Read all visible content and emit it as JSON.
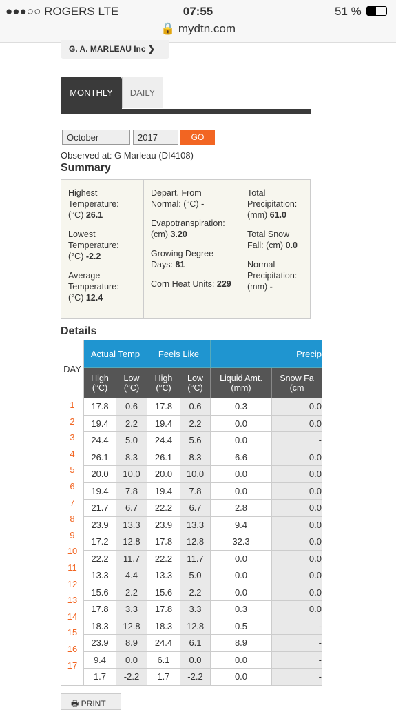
{
  "status_bar": {
    "carrier": "●●●○○ ROGERS   LTE",
    "time": "07:55",
    "battery": "51 %",
    "url": "mydtn.com"
  },
  "account": "G. A. MARLEAU Inc",
  "tabs": [
    "MONTHLY",
    "DAILY"
  ],
  "filters": {
    "month": "October",
    "year": "2017",
    "button": "GO"
  },
  "observed": "Observed at: G Marleau (DI4108)",
  "summary": {
    "title": "Summary",
    "columns": [
      [
        {
          "label": "Highest Temperature: (°C)",
          "value": "26.1"
        },
        {
          "label": "Lowest Temperature: (°C)",
          "value": "-2.2"
        },
        {
          "label": "Average Temperature: (°C)",
          "value": "12.4"
        }
      ],
      [
        {
          "label": "Depart. From Normal: (°C)",
          "value": "-"
        },
        {
          "label": "Evapotranspiration: (cm)",
          "value": "3.20"
        },
        {
          "label": "Growing Degree Days:",
          "value": "81"
        },
        {
          "label": "Corn Heat Units:",
          "value": "229"
        }
      ],
      [
        {
          "label": "Total Precipitation: (mm)",
          "value": "61.0"
        },
        {
          "label": "Total Snow Fall: (cm)",
          "value": "0.0"
        },
        {
          "label": "Normal Precipitation: (mm)",
          "value": "-"
        }
      ]
    ]
  },
  "details": {
    "title": "Details",
    "day_header": "DAY",
    "groups": [
      "Actual Temp",
      "Feels Like",
      "Precip"
    ],
    "columns": [
      [
        "High",
        "(°C)"
      ],
      [
        "Low",
        "(°C)"
      ],
      [
        "High",
        "(°C)"
      ],
      [
        "Low",
        "(°C)"
      ],
      [
        "Liquid Amt.",
        "(mm)"
      ],
      [
        "Snow Fa",
        "(cm"
      ]
    ],
    "days": [
      "1",
      "2",
      "3",
      "4",
      "5",
      "6",
      "7",
      "8",
      "9",
      "10",
      "11",
      "12",
      "13",
      "14",
      "15",
      "16",
      "17"
    ],
    "rows": [
      [
        "17.8",
        "0.6",
        "17.8",
        "0.6",
        "0.3",
        "0.0"
      ],
      [
        "19.4",
        "2.2",
        "19.4",
        "2.2",
        "0.0",
        "0.0"
      ],
      [
        "24.4",
        "5.0",
        "24.4",
        "5.6",
        "0.0",
        "-"
      ],
      [
        "26.1",
        "8.3",
        "26.1",
        "8.3",
        "6.6",
        "0.0"
      ],
      [
        "20.0",
        "10.0",
        "20.0",
        "10.0",
        "0.0",
        "0.0"
      ],
      [
        "19.4",
        "7.8",
        "19.4",
        "7.8",
        "0.0",
        "0.0"
      ],
      [
        "21.7",
        "6.7",
        "22.2",
        "6.7",
        "2.8",
        "0.0"
      ],
      [
        "23.9",
        "13.3",
        "23.9",
        "13.3",
        "9.4",
        "0.0"
      ],
      [
        "17.2",
        "12.8",
        "17.8",
        "12.8",
        "32.3",
        "0.0"
      ],
      [
        "22.2",
        "11.7",
        "22.2",
        "11.7",
        "0.0",
        "0.0"
      ],
      [
        "13.3",
        "4.4",
        "13.3",
        "5.0",
        "0.0",
        "0.0"
      ],
      [
        "15.6",
        "2.2",
        "15.6",
        "2.2",
        "0.0",
        "0.0"
      ],
      [
        "17.8",
        "3.3",
        "17.8",
        "3.3",
        "0.3",
        "0.0"
      ],
      [
        "18.3",
        "12.8",
        "18.3",
        "12.8",
        "0.5",
        "-"
      ],
      [
        "23.9",
        "8.9",
        "24.4",
        "6.1",
        "8.9",
        "-"
      ],
      [
        "9.4",
        "0.0",
        "6.1",
        "0.0",
        "0.0",
        "-"
      ],
      [
        "1.7",
        "-2.2",
        "1.7",
        "-2.2",
        "0.0",
        "-"
      ]
    ]
  },
  "print": "PRINT"
}
